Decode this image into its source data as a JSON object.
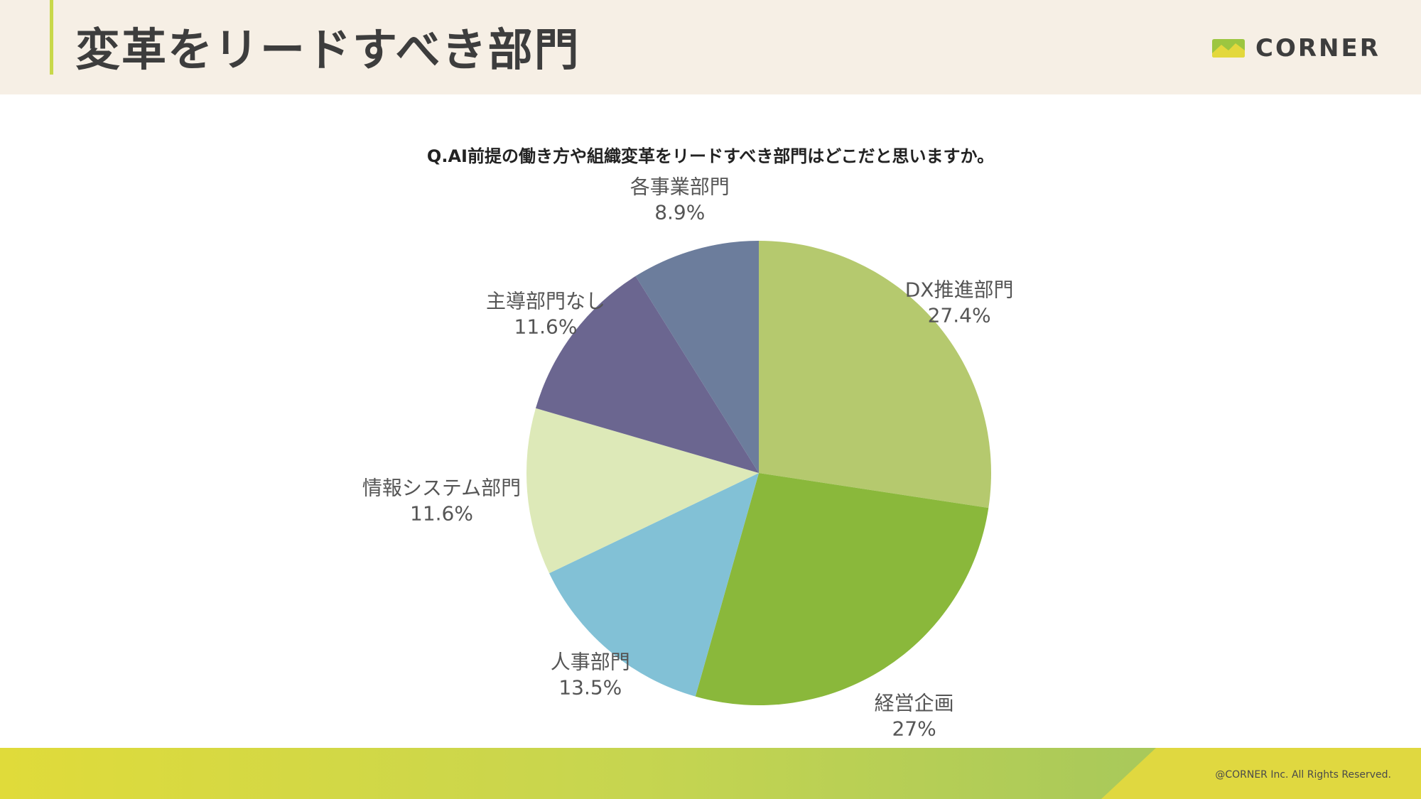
{
  "header": {
    "title": "変革をリードすべき部門",
    "logo_text": "CORNER",
    "logo_icon": "corner-logo-icon"
  },
  "question": "Q.AI前提の働き方や組織変革をリードすべき部門はどこだと思いますか。",
  "chart_data": {
    "type": "pie",
    "title": "",
    "start_angle": "12 o'clock",
    "direction": "clockwise",
    "slices": [
      {
        "label": "DX推進部門",
        "value": 27.4,
        "value_label": "27.4%",
        "color": "#b5c96e"
      },
      {
        "label": "経営企画",
        "value": 27.0,
        "value_label": "27%",
        "color": "#8ab83b"
      },
      {
        "label": "人事部門",
        "value": 13.5,
        "value_label": "13.5%",
        "color": "#82c1d6"
      },
      {
        "label": "情報システム部門",
        "value": 11.6,
        "value_label": "11.6%",
        "color": "#dde9b8"
      },
      {
        "label": "主導部門なし",
        "value": 11.6,
        "value_label": "11.6%",
        "color": "#6b6690"
      },
      {
        "label": "各事業部門",
        "value": 8.9,
        "value_label": "8.9%",
        "color": "#6c7d9c"
      }
    ]
  },
  "footer": {
    "copyright": "@CORNER Inc. All Rights Reserved."
  }
}
